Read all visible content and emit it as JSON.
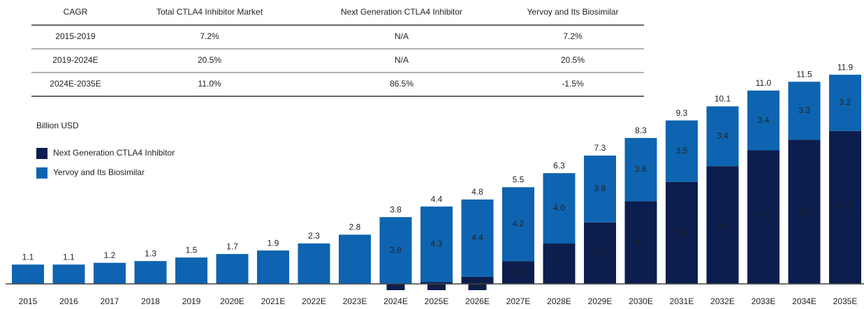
{
  "table": {
    "header": [
      "CAGR",
      "Total CTLA4 Inhibitor Market",
      "Next Generation CTLA4 Inhibitor",
      "Yervoy and Its Biosimilar"
    ],
    "rows": [
      [
        "2015-2019",
        "7.2%",
        "N/A",
        "7.2%"
      ],
      [
        "2019-2024E",
        "20.5%",
        "N/A",
        "20.5%"
      ],
      [
        "2024E-2035E",
        "11.0%",
        "86.5%",
        "-1.5%"
      ]
    ]
  },
  "chart_data": {
    "type": "stacked_bar",
    "unit_label": "Billion USD",
    "categories": [
      "2015",
      "2016",
      "2017",
      "2018",
      "2019",
      "2020E",
      "2021E",
      "2022E",
      "2023E",
      "2024E",
      "2025E",
      "2026E",
      "2027E",
      "2028E",
      "2029E",
      "2030E",
      "2031E",
      "2032E",
      "2033E",
      "2034E",
      "2035E"
    ],
    "series": [
      {
        "name": "Next Generation CTLA4 Inhibitor",
        "color": "#0c1e4e",
        "values": [
          null,
          null,
          null,
          null,
          null,
          null,
          null,
          null,
          null,
          0,
          0.1,
          0.4,
          1.3,
          2.3,
          3.5,
          4.7,
          5.8,
          6.7,
          7.6,
          8.2,
          8.7
        ],
        "value_labels": [
          null,
          null,
          null,
          null,
          null,
          null,
          null,
          null,
          null,
          "0.0",
          null,
          null,
          null,
          null,
          null,
          null,
          null,
          null,
          null,
          null,
          null
        ]
      },
      {
        "name": "Yervoy and Its Biosimilar",
        "color": "#0e64b0",
        "values": [
          1.1,
          1.1,
          1.2,
          1.3,
          1.5,
          1.7,
          1.9,
          2.3,
          2.8,
          3.8,
          4.3,
          4.4,
          4.2,
          4.0,
          3.8,
          3.6,
          3.5,
          3.4,
          3.4,
          3.3,
          3.2
        ],
        "value_labels": [
          null,
          null,
          null,
          null,
          null,
          null,
          null,
          null,
          null,
          null,
          null,
          null,
          null,
          "4.0",
          null,
          null,
          null,
          null,
          null,
          null,
          null
        ]
      }
    ],
    "totals": [
      1.1,
      1.1,
      1.2,
      1.3,
      1.5,
      1.7,
      1.9,
      2.3,
      2.8,
      3.8,
      4.4,
      4.8,
      5.5,
      6.3,
      7.3,
      8.3,
      9.3,
      10.1,
      11.0,
      11.5,
      11.9
    ],
    "totals_value_labels": [
      null,
      null,
      null,
      null,
      null,
      null,
      null,
      null,
      null,
      null,
      null,
      null,
      null,
      null,
      null,
      null,
      null,
      null,
      "11.0",
      null,
      null
    ]
  }
}
